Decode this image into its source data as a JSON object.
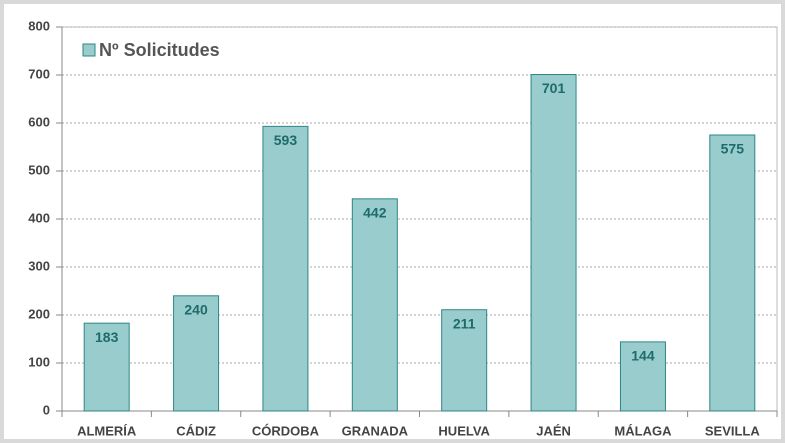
{
  "chart_data": {
    "type": "bar",
    "legend": "Nº Solicitudes",
    "categories": [
      "ALMERÍA",
      "CÁDIZ",
      "CÓRDOBA",
      "GRANADA",
      "HUELVA",
      "JAÉN",
      "MÁLAGA",
      "SEVILLA"
    ],
    "values": [
      183,
      240,
      593,
      442,
      211,
      701,
      144,
      575
    ],
    "color": "#99cccc",
    "edge_color": "#2e8686",
    "ylim": [
      0,
      800
    ],
    "yticks": [
      0,
      100,
      200,
      300,
      400,
      500,
      600,
      700,
      800
    ],
    "grid": true,
    "legend_position": "upper left"
  }
}
